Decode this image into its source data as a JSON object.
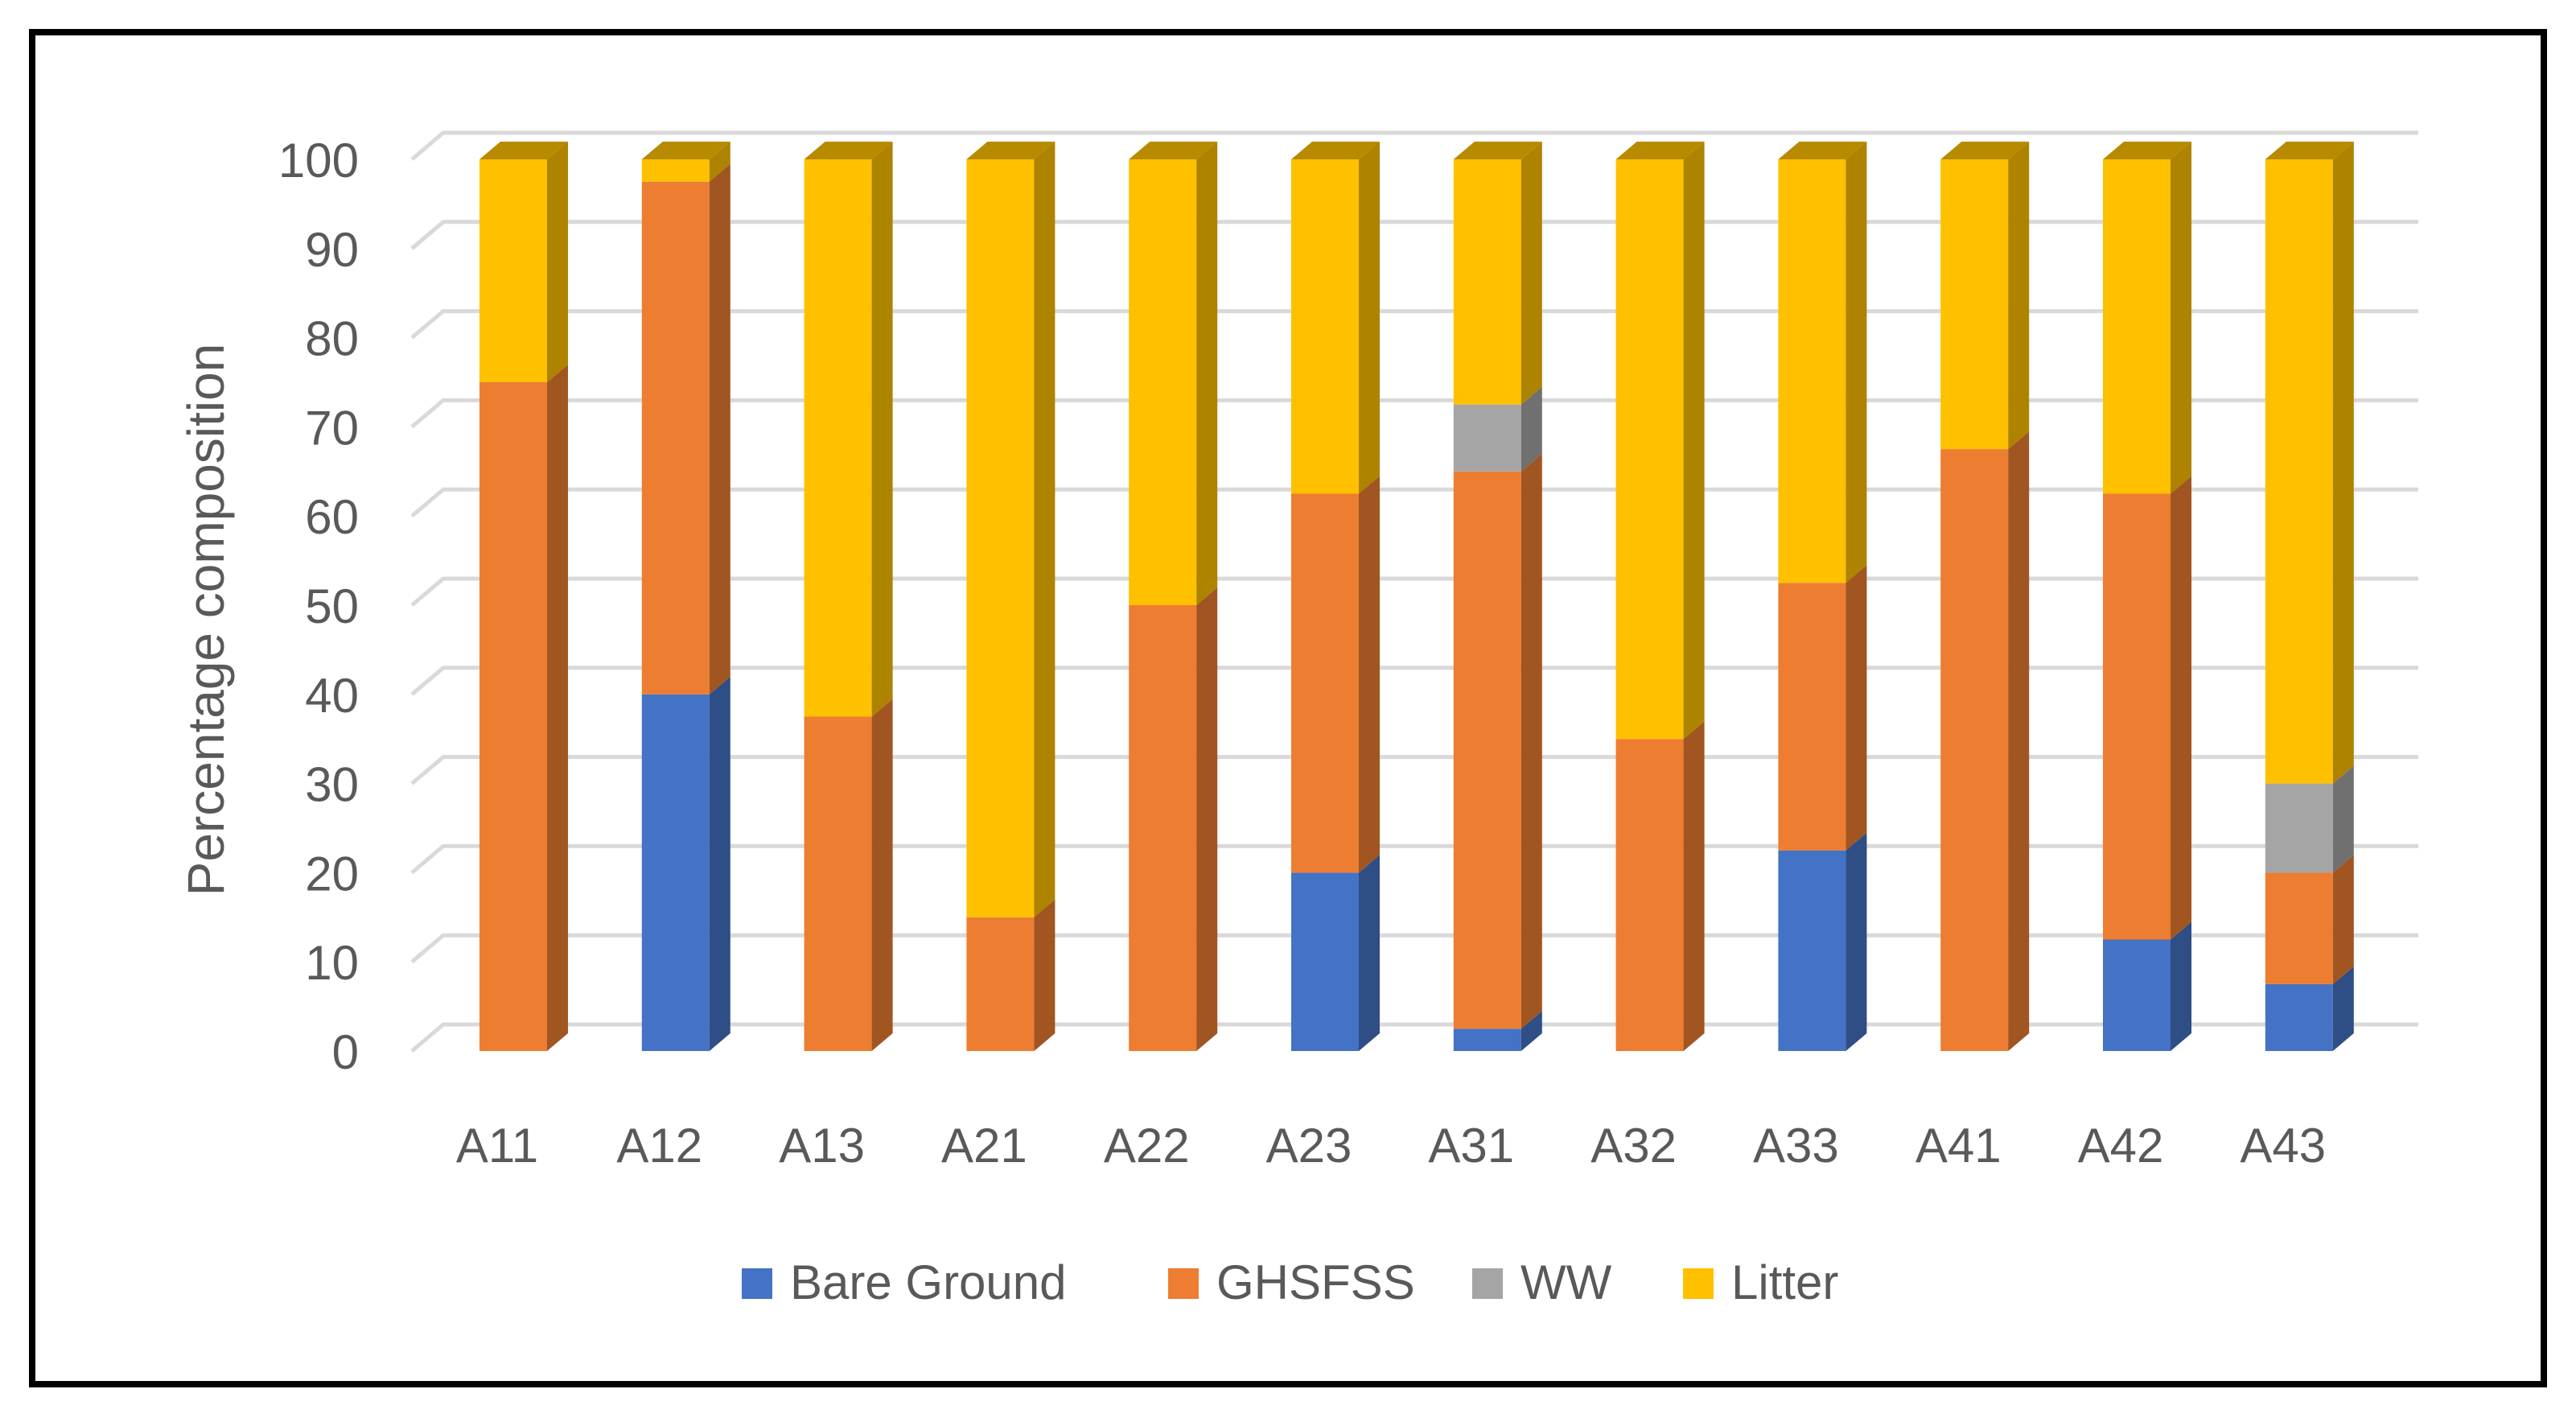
{
  "chart_data": {
    "type": "bar",
    "stacked": true,
    "three_d": true,
    "title": "",
    "xlabel": "",
    "ylabel": "Percentage composition",
    "ylim": [
      0,
      100
    ],
    "yticks": [
      0,
      10,
      20,
      30,
      40,
      50,
      60,
      70,
      80,
      90,
      100
    ],
    "grid": true,
    "legend_position": "bottom",
    "categories": [
      "A11",
      "A12",
      "A13",
      "A21",
      "A22",
      "A23",
      "A31",
      "A32",
      "A33",
      "A41",
      "A42",
      "A43"
    ],
    "series": [
      {
        "name": "Bare Ground",
        "color": "#4472C4",
        "values": [
          0,
          40,
          0,
          0,
          0,
          20,
          2.5,
          0,
          22.5,
          0,
          12.5,
          7.5
        ]
      },
      {
        "name": "GHSFSS",
        "color": "#ED7D31",
        "values": [
          75,
          57.5,
          37.5,
          15,
          50,
          42.5,
          62.5,
          35,
          30,
          67.5,
          50,
          12.5
        ]
      },
      {
        "name": "WW",
        "color": "#A5A5A5",
        "values": [
          0,
          0,
          0,
          0,
          0,
          0,
          7.5,
          0,
          0,
          0,
          0,
          10
        ]
      },
      {
        "name": "Litter",
        "color": "#FFC000",
        "values": [
          25,
          2.5,
          62.5,
          85,
          50,
          37.5,
          27.5,
          65,
          47.5,
          32.5,
          37.5,
          70
        ]
      }
    ]
  }
}
